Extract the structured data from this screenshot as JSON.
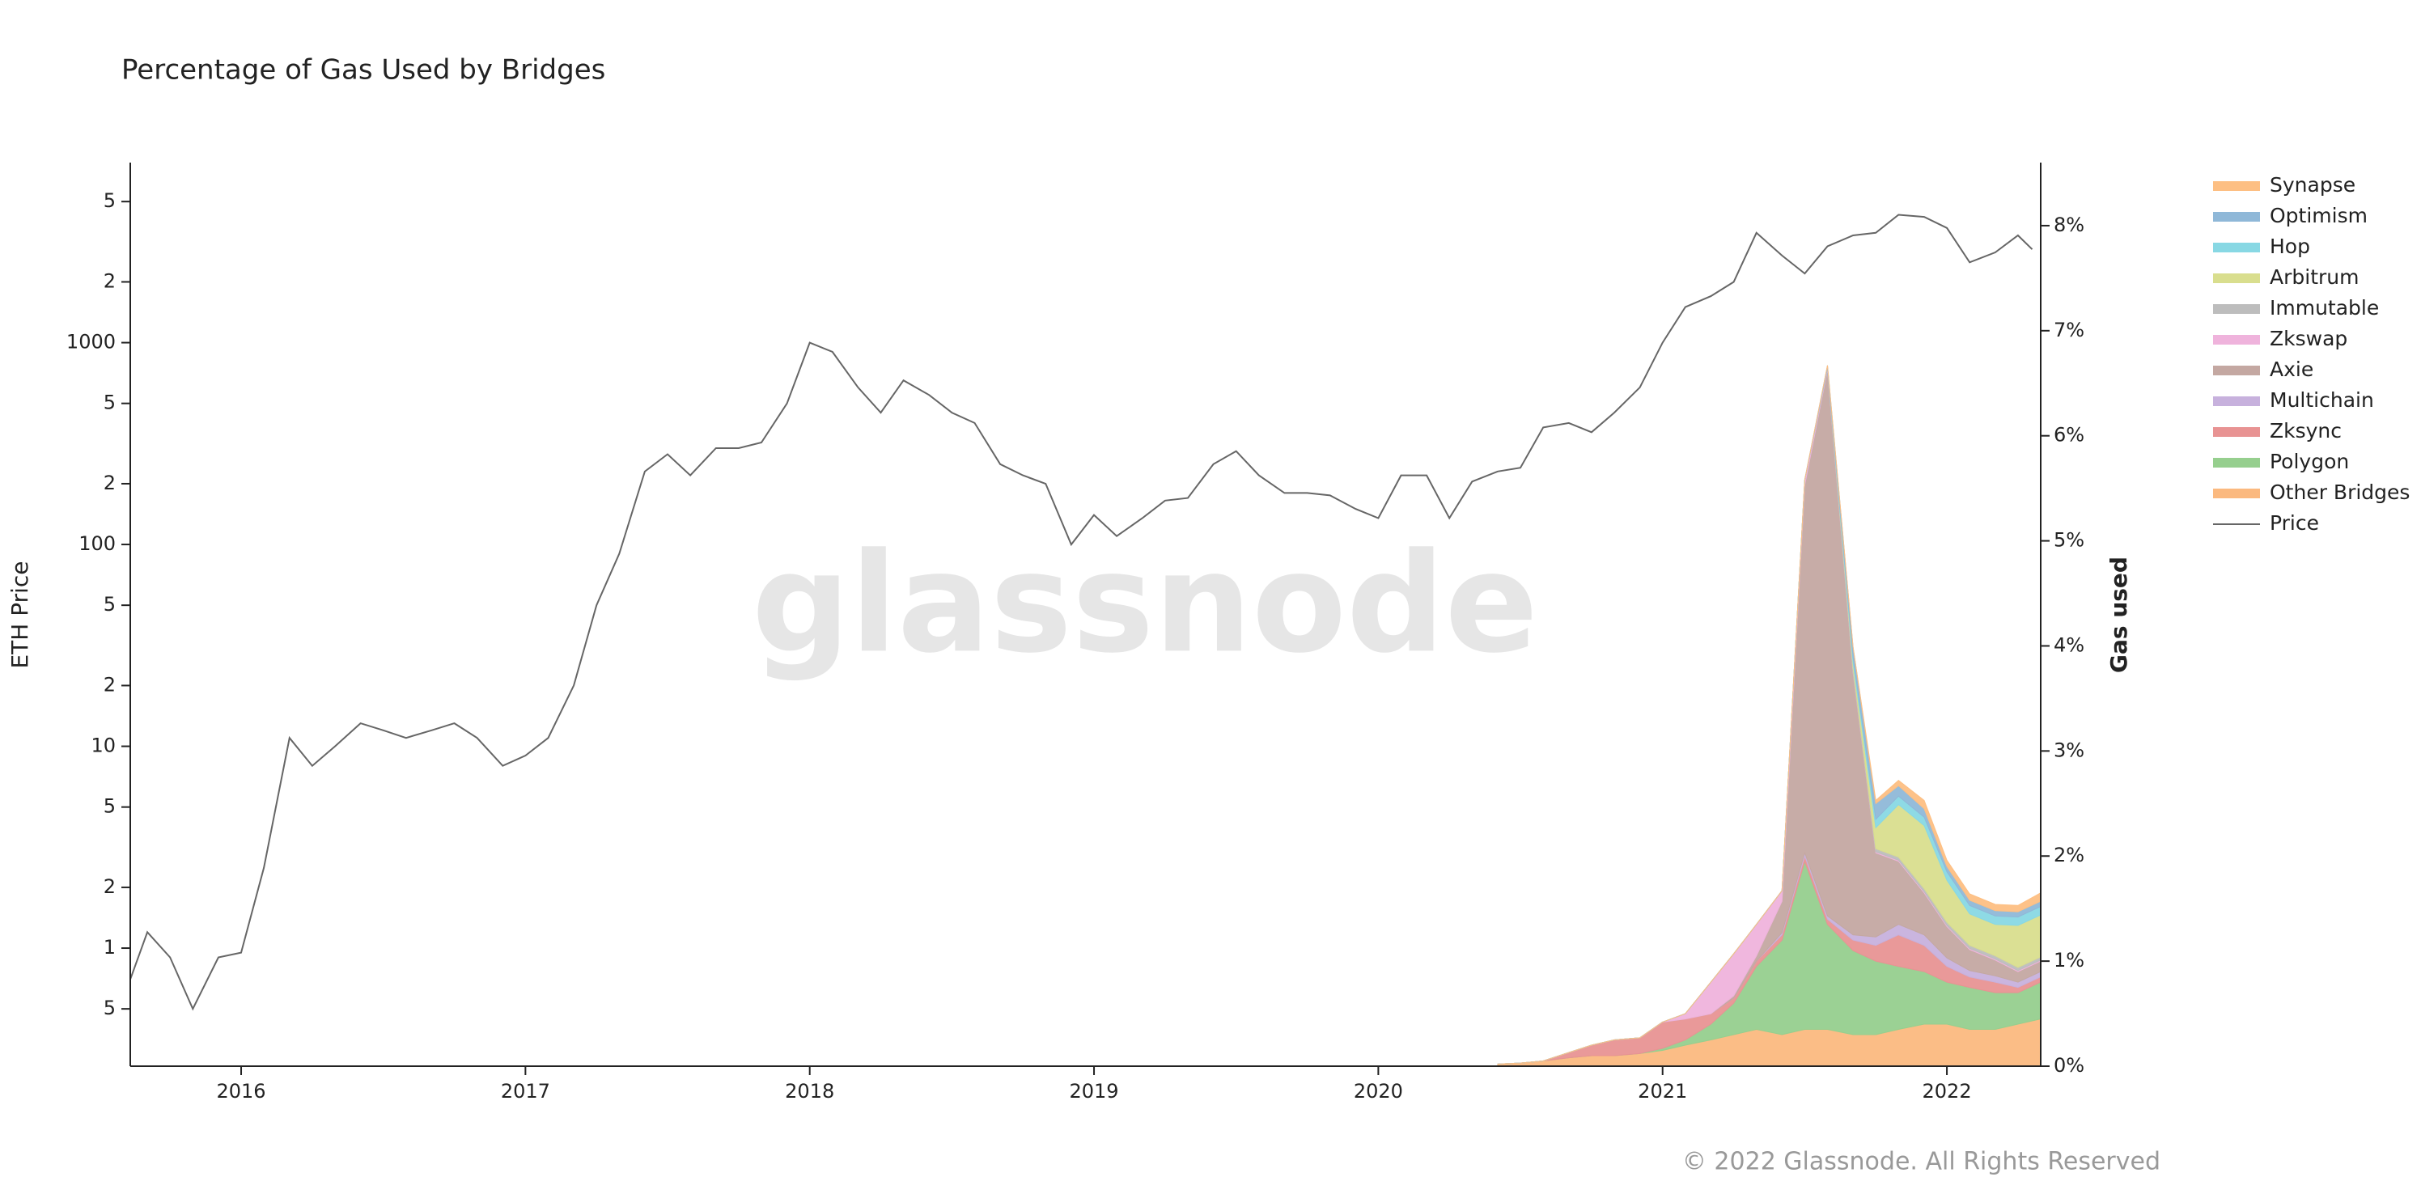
{
  "chart_data": {
    "type": "area",
    "title": "Percentage of Gas Used by Bridges",
    "watermark": "glassnode",
    "copyright": "© 2022 Glassnode. All Rights Reserved",
    "ylabel": "ETH Price",
    "y2label": "Gas used",
    "log_y": true,
    "grid": false,
    "legend": "right",
    "xlim": [
      2015.61,
      2022.33
    ],
    "xticks": [
      2016,
      2017,
      2018,
      2019,
      2020,
      2021,
      2022
    ],
    "ylim": [
      0.26,
      7800
    ],
    "yticks": [
      {
        "value": 0.5,
        "label": "5"
      },
      1,
      2,
      5,
      10,
      {
        "value": 20,
        "label": "2"
      },
      {
        "value": 50,
        "label": "5"
      },
      100,
      {
        "value": 200,
        "label": "2"
      },
      {
        "value": 500,
        "label": "5"
      },
      1000,
      {
        "value": 2000,
        "label": "2"
      },
      {
        "value": 5000,
        "label": "5"
      }
    ],
    "y2lim": [
      0,
      8.6
    ],
    "y2ticks": [
      {
        "value": 0,
        "label": "0%"
      },
      {
        "value": 1,
        "label": "1%"
      },
      {
        "value": 2,
        "label": "2%"
      },
      {
        "value": 3,
        "label": "3%"
      },
      {
        "value": 4,
        "label": "4%"
      },
      {
        "value": 5,
        "label": "5%"
      },
      {
        "value": 6,
        "label": "6%"
      },
      {
        "value": 7,
        "label": "7%"
      },
      {
        "value": 8,
        "label": "8%"
      }
    ],
    "series": [
      {
        "name": "Synapse",
        "color": "#fdbf83",
        "axis": "y2",
        "x": [
          2020.42,
          2020.5,
          2020.58,
          2020.67,
          2020.75,
          2020.83,
          2020.92,
          2021.0,
          2021.08,
          2021.17,
          2021.25,
          2021.33,
          2021.42,
          2021.5,
          2021.58,
          2021.67,
          2021.75,
          2021.83,
          2021.92,
          2022.0,
          2022.08,
          2022.17,
          2022.25,
          2022.33
        ],
        "values": [
          0,
          0,
          0,
          0,
          0,
          0,
          0,
          0,
          0,
          0,
          0,
          0,
          0,
          0,
          0,
          0,
          0.03,
          0.05,
          0.08,
          0.06,
          0.06,
          0.06,
          0.06,
          0.08
        ]
      },
      {
        "name": "Optimism",
        "color": "#8fb8d8",
        "axis": "y2",
        "x": [
          2020.42,
          2020.5,
          2020.58,
          2020.67,
          2020.75,
          2020.83,
          2020.92,
          2021.0,
          2021.08,
          2021.17,
          2021.25,
          2021.33,
          2021.42,
          2021.5,
          2021.58,
          2021.67,
          2021.75,
          2021.83,
          2021.92,
          2022.0,
          2022.08,
          2022.17,
          2022.25,
          2022.33
        ],
        "values": [
          0,
          0,
          0,
          0,
          0,
          0,
          0,
          0,
          0,
          0,
          0,
          0,
          0,
          0,
          0.02,
          0.1,
          0.15,
          0.1,
          0.08,
          0.05,
          0.05,
          0.05,
          0.05,
          0.05
        ]
      },
      {
        "name": "Hop",
        "color": "#88d8e4",
        "axis": "y2",
        "x": [
          2020.42,
          2020.5,
          2020.58,
          2020.67,
          2020.75,
          2020.83,
          2020.92,
          2021.0,
          2021.08,
          2021.17,
          2021.25,
          2021.33,
          2021.42,
          2021.5,
          2021.58,
          2021.67,
          2021.75,
          2021.83,
          2021.92,
          2022.0,
          2022.08,
          2022.17,
          2022.25,
          2022.33
        ],
        "values": [
          0,
          0,
          0,
          0,
          0,
          0,
          0,
          0,
          0,
          0,
          0,
          0,
          0,
          0,
          0,
          0.05,
          0.08,
          0.08,
          0.08,
          0.08,
          0.08,
          0.08,
          0.08,
          0.08
        ]
      },
      {
        "name": "Arbitrum",
        "color": "#d9de8e",
        "axis": "y2",
        "x": [
          2020.42,
          2020.5,
          2020.58,
          2020.67,
          2020.75,
          2020.83,
          2020.92,
          2021.0,
          2021.08,
          2021.17,
          2021.25,
          2021.33,
          2021.42,
          2021.5,
          2021.58,
          2021.67,
          2021.75,
          2021.83,
          2021.92,
          2022.0,
          2022.08,
          2022.17,
          2022.25,
          2022.33
        ],
        "values": [
          0,
          0,
          0,
          0,
          0,
          0,
          0,
          0,
          0,
          0,
          0,
          0,
          0,
          0,
          0,
          0.05,
          0.2,
          0.5,
          0.6,
          0.4,
          0.3,
          0.3,
          0.4,
          0.4
        ]
      },
      {
        "name": "Immutable",
        "color": "#bdbdbd",
        "axis": "y2",
        "x": [
          2020.42,
          2020.5,
          2020.58,
          2020.67,
          2020.75,
          2020.83,
          2020.92,
          2021.0,
          2021.08,
          2021.17,
          2021.25,
          2021.33,
          2021.42,
          2021.5,
          2021.58,
          2021.67,
          2021.75,
          2021.83,
          2021.92,
          2022.0,
          2022.08,
          2022.17,
          2022.25,
          2022.33
        ],
        "values": [
          0,
          0,
          0,
          0,
          0,
          0,
          0,
          0,
          0,
          0,
          0,
          0,
          0,
          0,
          0,
          0.03,
          0.03,
          0.03,
          0.03,
          0.03,
          0.03,
          0.03,
          0.03,
          0.03
        ]
      },
      {
        "name": "Zkswap",
        "color": "#efb3dc",
        "axis": "y2",
        "x": [
          2020.42,
          2020.5,
          2020.58,
          2020.67,
          2020.75,
          2020.83,
          2020.92,
          2021.0,
          2021.08,
          2021.17,
          2021.25,
          2021.33,
          2021.42,
          2021.5,
          2021.58,
          2021.67,
          2021.75,
          2021.83,
          2021.92,
          2022.0,
          2022.08,
          2022.17,
          2022.25,
          2022.33
        ],
        "values": [
          0,
          0,
          0,
          0,
          0,
          0,
          0,
          0,
          0.05,
          0.3,
          0.4,
          0.3,
          0.1,
          0.05,
          0.02,
          0.01,
          0.01,
          0.01,
          0.01,
          0.01,
          0.01,
          0.01,
          0.01,
          0.01
        ]
      },
      {
        "name": "Axie",
        "color": "#c4a8a2",
        "axis": "y2",
        "x": [
          2020.42,
          2020.5,
          2020.58,
          2020.67,
          2020.75,
          2020.83,
          2020.92,
          2021.0,
          2021.08,
          2021.17,
          2021.25,
          2021.33,
          2021.42,
          2021.5,
          2021.58,
          2021.67,
          2021.75,
          2021.83,
          2021.92,
          2022.0,
          2022.08,
          2022.17,
          2022.25,
          2022.33
        ],
        "values": [
          0,
          0,
          0,
          0,
          0,
          0,
          0,
          0,
          0,
          0,
          0.02,
          0.05,
          0.3,
          3.5,
          5.2,
          2.5,
          0.8,
          0.6,
          0.4,
          0.3,
          0.2,
          0.15,
          0.1,
          0.1
        ]
      },
      {
        "name": "Multichain",
        "color": "#c7b1dd",
        "axis": "y2",
        "x": [
          2020.42,
          2020.5,
          2020.58,
          2020.67,
          2020.75,
          2020.83,
          2020.92,
          2021.0,
          2021.08,
          2021.17,
          2021.25,
          2021.33,
          2021.42,
          2021.5,
          2021.58,
          2021.67,
          2021.75,
          2021.83,
          2021.92,
          2022.0,
          2022.08,
          2022.17,
          2022.25,
          2022.33
        ],
        "values": [
          0,
          0,
          0,
          0,
          0,
          0,
          0,
          0,
          0,
          0,
          0,
          0,
          0.02,
          0.03,
          0.03,
          0.05,
          0.08,
          0.1,
          0.1,
          0.08,
          0.06,
          0.06,
          0.05,
          0.05
        ]
      },
      {
        "name": "Zksync",
        "color": "#e89393",
        "axis": "y2",
        "x": [
          2020.42,
          2020.5,
          2020.58,
          2020.67,
          2020.75,
          2020.83,
          2020.92,
          2021.0,
          2021.08,
          2021.17,
          2021.25,
          2021.33,
          2021.42,
          2021.5,
          2021.58,
          2021.67,
          2021.75,
          2021.83,
          2021.92,
          2022.0,
          2022.08,
          2022.17,
          2022.25,
          2022.33
        ],
        "values": [
          0,
          0,
          0,
          0.05,
          0.1,
          0.15,
          0.15,
          0.25,
          0.2,
          0.1,
          0.05,
          0.05,
          0.05,
          0.05,
          0.05,
          0.1,
          0.15,
          0.3,
          0.25,
          0.15,
          0.1,
          0.1,
          0.05,
          0.05
        ]
      },
      {
        "name": "Polygon",
        "color": "#96cf8e",
        "axis": "y2",
        "x": [
          2020.42,
          2020.5,
          2020.58,
          2020.67,
          2020.75,
          2020.83,
          2020.92,
          2021.0,
          2021.08,
          2021.17,
          2021.25,
          2021.33,
          2021.42,
          2021.5,
          2021.58,
          2021.67,
          2021.75,
          2021.83,
          2021.92,
          2022.0,
          2022.08,
          2022.17,
          2022.25,
          2022.33
        ],
        "values": [
          0,
          0,
          0,
          0,
          0,
          0,
          0,
          0.02,
          0.05,
          0.15,
          0.3,
          0.6,
          0.9,
          1.6,
          1.0,
          0.8,
          0.7,
          0.6,
          0.5,
          0.4,
          0.4,
          0.35,
          0.3,
          0.35
        ]
      },
      {
        "name": "Other Bridges",
        "color": "#fbb97f",
        "axis": "y2",
        "x": [
          2020.42,
          2020.5,
          2020.58,
          2020.67,
          2020.75,
          2020.83,
          2020.92,
          2021.0,
          2021.08,
          2021.17,
          2021.25,
          2021.33,
          2021.42,
          2021.5,
          2021.58,
          2021.67,
          2021.75,
          2021.83,
          2021.92,
          2022.0,
          2022.08,
          2022.17,
          2022.25,
          2022.33
        ],
        "values": [
          0.02,
          0.03,
          0.05,
          0.08,
          0.1,
          0.1,
          0.12,
          0.15,
          0.2,
          0.25,
          0.3,
          0.35,
          0.3,
          0.35,
          0.35,
          0.3,
          0.3,
          0.35,
          0.4,
          0.4,
          0.35,
          0.35,
          0.4,
          0.45
        ]
      },
      {
        "name": "Price",
        "color": "#666666",
        "type": "line",
        "x": [
          2015.61,
          2015.67,
          2015.75,
          2015.83,
          2015.92,
          2016.0,
          2016.08,
          2016.17,
          2016.25,
          2016.33,
          2016.42,
          2016.5,
          2016.58,
          2016.67,
          2016.75,
          2016.83,
          2016.92,
          2017.0,
          2017.08,
          2017.17,
          2017.25,
          2017.33,
          2017.42,
          2017.5,
          2017.58,
          2017.67,
          2017.75,
          2017.83,
          2017.92,
          2018.0,
          2018.08,
          2018.17,
          2018.25,
          2018.33,
          2018.42,
          2018.5,
          2018.58,
          2018.67,
          2018.75,
          2018.83,
          2018.92,
          2019.0,
          2019.08,
          2019.17,
          2019.25,
          2019.33,
          2019.42,
          2019.5,
          2019.58,
          2019.67,
          2019.75,
          2019.83,
          2019.92,
          2020.0,
          2020.08,
          2020.17,
          2020.25,
          2020.33,
          2020.42,
          2020.5,
          2020.58,
          2020.67,
          2020.75,
          2020.83,
          2020.92,
          2021.0,
          2021.08,
          2021.17,
          2021.25,
          2021.33,
          2021.42,
          2021.5,
          2021.58,
          2021.67,
          2021.75,
          2021.83,
          2021.92,
          2022.0,
          2022.08,
          2022.17,
          2022.25,
          2022.3
        ],
        "values": [
          0.7,
          1.2,
          0.9,
          0.5,
          0.9,
          0.95,
          2.5,
          11,
          8,
          10,
          13,
          12,
          11,
          12,
          13,
          11,
          8,
          9,
          11,
          20,
          50,
          90,
          230,
          280,
          220,
          300,
          300,
          320,
          500,
          1000,
          900,
          600,
          450,
          650,
          550,
          450,
          400,
          250,
          220,
          200,
          100,
          140,
          110,
          135,
          165,
          170,
          250,
          290,
          220,
          180,
          180,
          175,
          150,
          135,
          220,
          220,
          135,
          205,
          230,
          240,
          380,
          400,
          360,
          450,
          600,
          1000,
          1500,
          1700,
          2000,
          3500,
          2700,
          2200,
          3000,
          3400,
          3500,
          4300,
          4200,
          3700,
          2500,
          2800,
          3400,
          2900
        ]
      }
    ]
  }
}
